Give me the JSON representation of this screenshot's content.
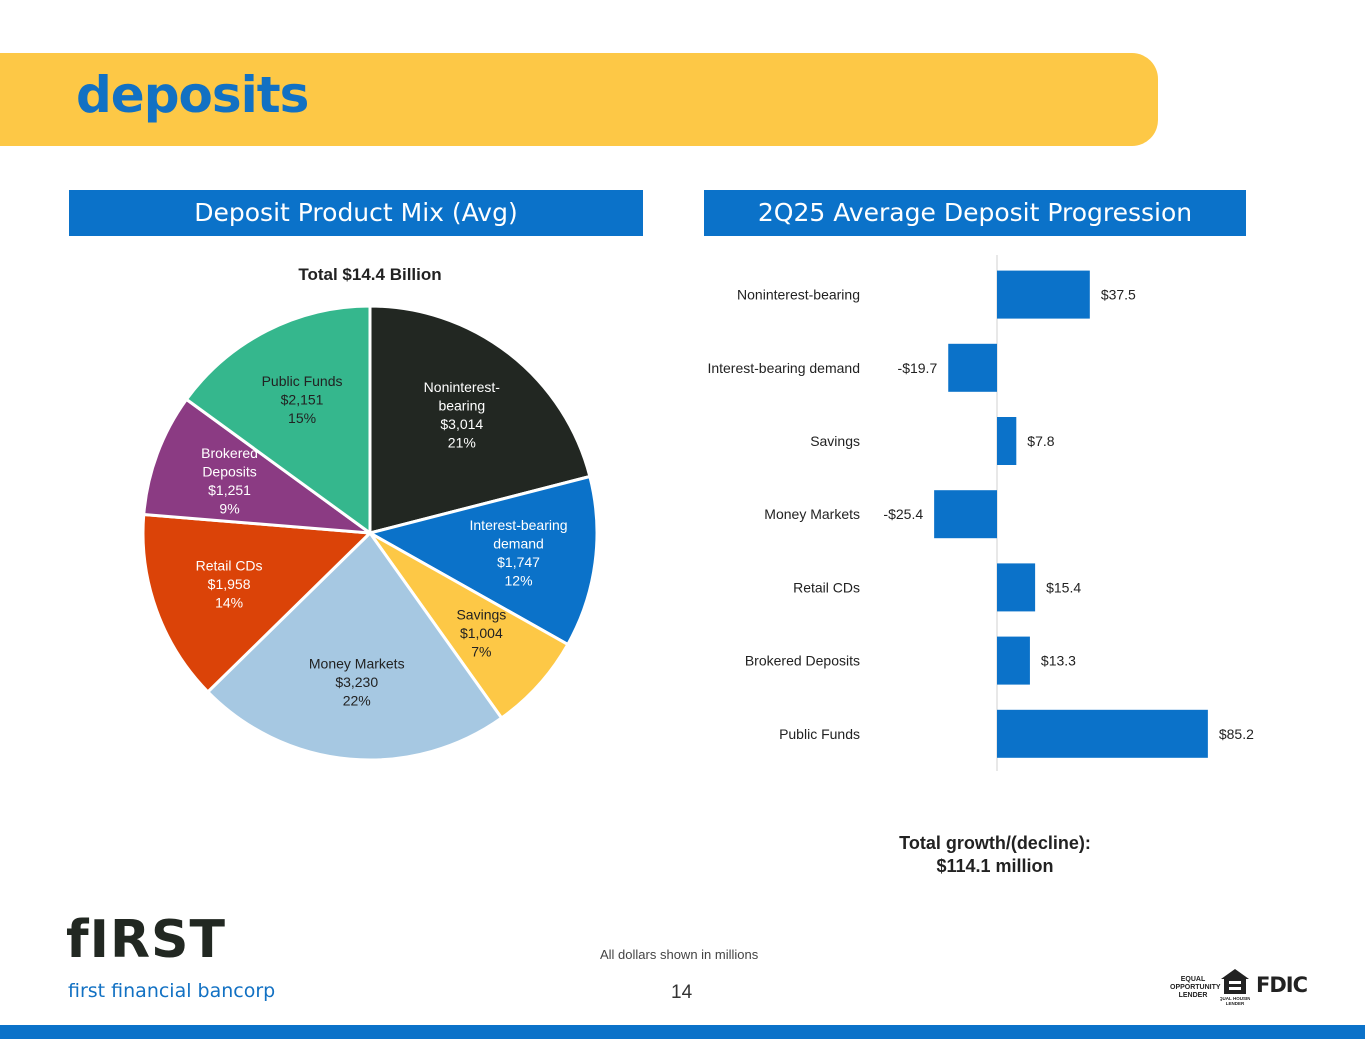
{
  "page": {
    "title": "deposits",
    "footnote": "All dollars shown in millions",
    "page_number": "14"
  },
  "logo": {
    "wordmark": "fIRST",
    "tagline": "first financial bancorp"
  },
  "badges": {
    "equal_opportunity": "EQUAL OPPORTUNITY LENDER",
    "equal_housing": "EQUAL HOUSING LENDER",
    "fdic": "FDIC"
  },
  "left_panel": {
    "header": "Deposit Product Mix (Avg)"
  },
  "right_panel": {
    "header": "2Q25 Average Deposit Progression",
    "total_line1": "Total growth/(decline):",
    "total_line2": "$114.1 million"
  },
  "chart_data": [
    {
      "type": "pie",
      "title": "Total $14.4 Billion",
      "slices": [
        {
          "name": "Noninterest-bearing",
          "label_lines": [
            "Noninterest-",
            "bearing"
          ],
          "value": 3014,
          "value_label": "$3,014",
          "percent_label": "21%",
          "color": "#222722",
          "text_color": "#ffffff"
        },
        {
          "name": "Interest-bearing demand",
          "label_lines": [
            "Interest-bearing",
            "demand"
          ],
          "value": 1747,
          "value_label": "$1,747",
          "percent_label": "12%",
          "color": "#0b72c9",
          "text_color": "#ffffff"
        },
        {
          "name": "Savings",
          "label_lines": [
            "Savings"
          ],
          "value": 1004,
          "value_label": "$1,004",
          "percent_label": "7%",
          "color": "#fdc846",
          "text_color": "#222222"
        },
        {
          "name": "Money Markets",
          "label_lines": [
            "Money Markets"
          ],
          "value": 3230,
          "value_label": "$3,230",
          "percent_label": "22%",
          "color": "#a6c8e2",
          "text_color": "#222222"
        },
        {
          "name": "Retail CDs",
          "label_lines": [
            "Retail CDs"
          ],
          "value": 1958,
          "value_label": "$1,958",
          "percent_label": "14%",
          "color": "#db4308",
          "text_color": "#ffffff"
        },
        {
          "name": "Brokered Deposits",
          "label_lines": [
            "Brokered",
            "Deposits"
          ],
          "value": 1251,
          "value_label": "$1,251",
          "percent_label": "9%",
          "color": "#8b3b83",
          "text_color": "#ffffff"
        },
        {
          "name": "Public Funds",
          "label_lines": [
            "Public Funds"
          ],
          "value": 2151,
          "value_label": "$2,151",
          "percent_label": "15%",
          "color": "#35b78d",
          "text_color": "#222222"
        }
      ]
    },
    {
      "type": "bar",
      "orientation": "horizontal",
      "categories": [
        "Noninterest-bearing",
        "Interest-bearing demand",
        "Savings",
        "Money Markets",
        "Retail CDs",
        "Brokered Deposits",
        "Public Funds"
      ],
      "values": [
        37.5,
        -19.7,
        7.8,
        -25.4,
        15.4,
        13.3,
        85.2
      ],
      "value_labels": [
        "$37.5",
        "-$19.7",
        "$7.8",
        "-$25.4",
        "$15.4",
        "$13.3",
        "$85.2"
      ],
      "color": "#0b72c9"
    }
  ]
}
